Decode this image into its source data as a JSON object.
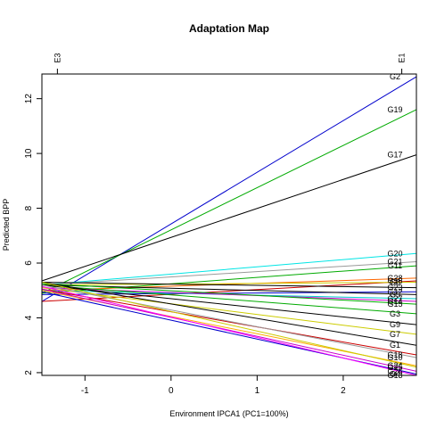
{
  "chart_data": {
    "type": "line",
    "title": "Adaptation Map",
    "xlabel": "Environment IPCA1 (PC1=100%)",
    "ylabel": "Predicted BPP",
    "xlim": [
      -1.5,
      2.85
    ],
    "ylim": [
      1.9,
      12.9
    ],
    "x_ticks": [
      -1,
      0,
      1,
      2
    ],
    "y_ticks": [
      2,
      4,
      6,
      8,
      10,
      12
    ],
    "top_axis": [
      {
        "label": "E3",
        "x": -1.32
      },
      {
        "label": "E1",
        "x": 2.68
      }
    ],
    "grid": false,
    "legend": "none",
    "series": [
      {
        "name": "G2",
        "x": [
          -1.5,
          2.85
        ],
        "y": [
          4.6,
          12.8
        ],
        "color": "#0000cc"
      },
      {
        "name": "G19",
        "x": [
          -1.5,
          2.85
        ],
        "y": [
          4.9,
          11.6
        ],
        "color": "#00aa00"
      },
      {
        "name": "G17",
        "x": [
          -1.5,
          2.85
        ],
        "y": [
          5.35,
          9.95
        ],
        "color": "#000000"
      },
      {
        "name": "G20",
        "x": [
          -1.5,
          2.85
        ],
        "y": [
          5.2,
          6.35
        ],
        "color": "#00e5e5"
      },
      {
        "name": "G21",
        "x": [
          -1.5,
          2.85
        ],
        "y": [
          5.2,
          6.05
        ],
        "color": "#999999"
      },
      {
        "name": "G11",
        "x": [
          -1.5,
          2.85
        ],
        "y": [
          4.9,
          5.9
        ],
        "color": "#00aa00"
      },
      {
        "name": "G28",
        "x": [
          -1.5,
          2.85
        ],
        "y": [
          5.0,
          5.45
        ],
        "color": "#ff6600"
      },
      {
        "name": "G16",
        "x": [
          -1.5,
          2.85
        ],
        "y": [
          4.6,
          5.35
        ],
        "color": "#cc0000"
      },
      {
        "name": "G8",
        "x": [
          -1.5,
          2.85
        ],
        "y": [
          5.2,
          5.3
        ],
        "color": "#cccc00"
      },
      {
        "name": "G23",
        "x": [
          -1.5,
          2.85
        ],
        "y": [
          5.3,
          5.1
        ],
        "color": "#000000"
      },
      {
        "name": "G12",
        "x": [
          -1.5,
          2.85
        ],
        "y": [
          4.85,
          4.95
        ],
        "color": "#0000cc"
      },
      {
        "name": "G5",
        "x": [
          -1.5,
          2.85
        ],
        "y": [
          5.2,
          4.85
        ],
        "color": "#000000"
      },
      {
        "name": "G27",
        "x": [
          -1.5,
          2.85
        ],
        "y": [
          5.0,
          4.7
        ],
        "color": "#00cccc"
      },
      {
        "name": "G14",
        "x": [
          -1.5,
          2.85
        ],
        "y": [
          5.1,
          4.6
        ],
        "color": "#cc00cc"
      },
      {
        "name": "G15",
        "x": [
          -1.5,
          2.85
        ],
        "y": [
          5.25,
          4.5
        ],
        "color": "#00aa00"
      },
      {
        "name": "G3",
        "x": [
          -1.5,
          2.85
        ],
        "y": [
          5.2,
          4.15
        ],
        "color": "#00aa00"
      },
      {
        "name": "G9",
        "x": [
          -1.5,
          2.85
        ],
        "y": [
          5.2,
          3.75
        ],
        "color": "#000000"
      },
      {
        "name": "G7",
        "x": [
          -1.5,
          2.85
        ],
        "y": [
          5.1,
          3.4
        ],
        "color": "#cccc00"
      },
      {
        "name": "G1",
        "x": [
          -1.5,
          2.85
        ],
        "y": [
          5.3,
          3.0
        ],
        "color": "#000000"
      },
      {
        "name": "G18",
        "x": [
          -1.5,
          2.85
        ],
        "y": [
          5.05,
          2.65
        ],
        "color": "#cc0000"
      },
      {
        "name": "G10",
        "x": [
          -1.5,
          2.85
        ],
        "y": [
          5.2,
          2.55
        ],
        "color": "#999999"
      },
      {
        "name": "G24",
        "x": [
          -1.5,
          2.85
        ],
        "y": [
          5.0,
          2.25
        ],
        "color": "#ffaa00"
      },
      {
        "name": "G25",
        "x": [
          -1.5,
          2.85
        ],
        "y": [
          5.3,
          2.2
        ],
        "color": "#cccc00"
      },
      {
        "name": "G26",
        "x": [
          -1.5,
          2.85
        ],
        "y": [
          5.05,
          2.05
        ],
        "color": "#cc00cc"
      },
      {
        "name": "G4",
        "x": [
          -1.5,
          2.85
        ],
        "y": [
          4.95,
          1.95
        ],
        "color": "#0000cc"
      },
      {
        "name": "G13",
        "x": [
          -1.5,
          2.85
        ],
        "y": [
          5.15,
          1.9
        ],
        "color": "#ff00ff"
      }
    ]
  }
}
